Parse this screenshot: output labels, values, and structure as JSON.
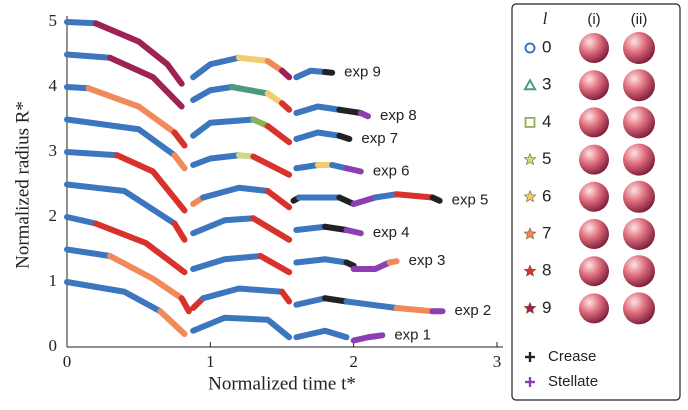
{
  "chart_data": {
    "type": "segmented-line",
    "x_label": "Normalized time t*",
    "y_label": "Normalized radius R*",
    "xlim": [
      0,
      3
    ],
    "ylim": [
      0,
      5
    ],
    "xticks": [
      0,
      1,
      2,
      3
    ],
    "yticks": [
      0,
      1,
      2,
      3,
      4,
      5
    ],
    "legend": {
      "title": "l",
      "columns": [
        "(i)",
        "(ii)"
      ],
      "entries": [
        {
          "label": "0",
          "marker": "circle",
          "color": "#3b76bf"
        },
        {
          "label": "3",
          "marker": "triangle",
          "color": "#4c9a7c"
        },
        {
          "label": "4",
          "marker": "square",
          "color": "#8fb05a"
        },
        {
          "label": "5",
          "marker": "star",
          "color": "#cfd884"
        },
        {
          "label": "6",
          "marker": "star",
          "color": "#f2cc6e"
        },
        {
          "label": "7",
          "marker": "star",
          "color": "#f1895a"
        },
        {
          "label": "8",
          "marker": "star",
          "color": "#d8322c"
        },
        {
          "label": "9",
          "marker": "star",
          "color": "#9c2353"
        },
        {
          "label": "Crease",
          "marker": "plus",
          "color": "#222222"
        },
        {
          "label": "Stellate",
          "marker": "plus",
          "color": "#8b3fb3"
        }
      ]
    },
    "series": [
      {
        "name": "exp 1",
        "segments": [
          {
            "mode": "0",
            "x": [
              0,
              0.4,
              0.65
            ],
            "values": [
              1.0,
              0.85,
              0.55
            ]
          },
          {
            "mode": "7",
            "x": [
              0.65,
              0.82
            ],
            "values": [
              0.55,
              0.2
            ]
          },
          {
            "mode": "0",
            "x": [
              0.88,
              1.1,
              1.4,
              1.55
            ],
            "values": [
              0.25,
              0.45,
              0.42,
              0.15
            ]
          },
          {
            "mode": "0",
            "x": [
              1.6,
              1.8,
              1.95
            ],
            "values": [
              0.15,
              0.25,
              0.15
            ]
          },
          {
            "mode": "Stellate",
            "x": [
              2.0,
              2.1,
              2.2
            ],
            "values": [
              0.1,
              0.15,
              0.18
            ]
          }
        ]
      },
      {
        "name": "exp 2",
        "segments": [
          {
            "mode": "0",
            "x": [
              0,
              0.3
            ],
            "values": [
              1.5,
              1.4
            ]
          },
          {
            "mode": "7",
            "x": [
              0.3,
              0.6,
              0.8
            ],
            "values": [
              1.4,
              1.05,
              0.75
            ]
          },
          {
            "mode": "8",
            "x": [
              0.8,
              0.85
            ],
            "values": [
              0.75,
              0.55
            ]
          },
          {
            "mode": "8",
            "x": [
              0.88,
              0.95
            ],
            "values": [
              0.6,
              0.75
            ]
          },
          {
            "mode": "0",
            "x": [
              0.95,
              1.2,
              1.5
            ],
            "values": [
              0.75,
              0.9,
              0.85
            ]
          },
          {
            "mode": "8",
            "x": [
              1.5,
              1.55
            ],
            "values": [
              0.85,
              0.7
            ]
          },
          {
            "mode": "0",
            "x": [
              1.6,
              1.8
            ],
            "values": [
              0.65,
              0.75
            ]
          },
          {
            "mode": "Crease",
            "x": [
              1.8,
              1.95
            ],
            "values": [
              0.75,
              0.7
            ]
          },
          {
            "mode": "0",
            "x": [
              1.95,
              2.3
            ],
            "values": [
              0.7,
              0.6
            ]
          },
          {
            "mode": "7",
            "x": [
              2.3,
              2.55
            ],
            "values": [
              0.6,
              0.55
            ]
          },
          {
            "mode": "Stellate",
            "x": [
              2.55,
              2.62
            ],
            "values": [
              0.55,
              0.55
            ]
          }
        ]
      },
      {
        "name": "exp 3",
        "segments": [
          {
            "mode": "0",
            "x": [
              0,
              0.2
            ],
            "values": [
              2.0,
              1.9
            ]
          },
          {
            "mode": "8",
            "x": [
              0.2,
              0.55,
              0.82
            ],
            "values": [
              1.9,
              1.6,
              1.15
            ]
          },
          {
            "mode": "0",
            "x": [
              0.88,
              1.1,
              1.35
            ],
            "values": [
              1.2,
              1.35,
              1.4
            ]
          },
          {
            "mode": "8",
            "x": [
              1.35,
              1.55
            ],
            "values": [
              1.4,
              1.15
            ]
          },
          {
            "mode": "0",
            "x": [
              1.6,
              1.8,
              1.95
            ],
            "values": [
              1.3,
              1.35,
              1.3
            ]
          },
          {
            "mode": "Crease",
            "x": [
              1.95,
              2.0
            ],
            "values": [
              1.3,
              1.25
            ]
          },
          {
            "mode": "Stellate",
            "x": [
              2.0,
              2.15,
              2.25
            ],
            "values": [
              1.2,
              1.2,
              1.3
            ]
          },
          {
            "mode": "7",
            "x": [
              2.25,
              2.3
            ],
            "values": [
              1.3,
              1.32
            ]
          }
        ]
      },
      {
        "name": "exp 4",
        "segments": [
          {
            "mode": "0",
            "x": [
              0,
              0.4,
              0.75
            ],
            "values": [
              2.5,
              2.4,
              1.9
            ]
          },
          {
            "mode": "8",
            "x": [
              0.75,
              0.82
            ],
            "values": [
              1.9,
              1.65
            ]
          },
          {
            "mode": "0",
            "x": [
              0.88,
              1.1,
              1.3
            ],
            "values": [
              1.75,
              1.95,
              1.98
            ]
          },
          {
            "mode": "8",
            "x": [
              1.3,
              1.55
            ],
            "values": [
              1.98,
              1.65
            ]
          },
          {
            "mode": "0",
            "x": [
              1.6,
              1.8
            ],
            "values": [
              1.8,
              1.85
            ]
          },
          {
            "mode": "Crease",
            "x": [
              1.8,
              1.95
            ],
            "values": [
              1.85,
              1.8
            ]
          },
          {
            "mode": "Stellate",
            "x": [
              1.95,
              2.05
            ],
            "values": [
              1.8,
              1.75
            ]
          }
        ]
      },
      {
        "name": "exp 5",
        "segments": [
          {
            "mode": "0",
            "x": [
              0,
              0.35
            ],
            "values": [
              3.0,
              2.95
            ]
          },
          {
            "mode": "8",
            "x": [
              0.35,
              0.6,
              0.82
            ],
            "values": [
              2.95,
              2.7,
              2.1
            ]
          },
          {
            "mode": "7",
            "x": [
              0.88,
              0.95
            ],
            "values": [
              2.2,
              2.3
            ]
          },
          {
            "mode": "0",
            "x": [
              0.95,
              1.2,
              1.4
            ],
            "values": [
              2.3,
              2.45,
              2.4
            ]
          },
          {
            "mode": "8",
            "x": [
              1.4,
              1.55
            ],
            "values": [
              2.4,
              2.15
            ]
          },
          {
            "mode": "Crease",
            "x": [
              1.58,
              1.62
            ],
            "values": [
              2.25,
              2.3
            ]
          },
          {
            "mode": "0",
            "x": [
              1.62,
              1.9
            ],
            "values": [
              2.3,
              2.3
            ]
          },
          {
            "mode": "Crease",
            "x": [
              1.9,
              2.0
            ],
            "values": [
              2.3,
              2.2
            ]
          },
          {
            "mode": "Stellate",
            "x": [
              2.0,
              2.15
            ],
            "values": [
              2.2,
              2.3
            ]
          },
          {
            "mode": "0",
            "x": [
              2.15,
              2.3
            ],
            "values": [
              2.3,
              2.35
            ]
          },
          {
            "mode": "8",
            "x": [
              2.3,
              2.55
            ],
            "values": [
              2.35,
              2.3
            ]
          },
          {
            "mode": "Crease",
            "x": [
              2.55,
              2.6
            ],
            "values": [
              2.3,
              2.25
            ]
          }
        ]
      },
      {
        "name": "exp 6",
        "segments": [
          {
            "mode": "0",
            "x": [
              0,
              0.5,
              0.75
            ],
            "values": [
              3.5,
              3.35,
              2.95
            ]
          },
          {
            "mode": "7",
            "x": [
              0.75,
              0.82
            ],
            "values": [
              2.95,
              2.75
            ]
          },
          {
            "mode": "0",
            "x": [
              0.88,
              1.0,
              1.2
            ],
            "values": [
              2.8,
              2.9,
              2.95
            ]
          },
          {
            "mode": "5",
            "x": [
              1.2,
              1.3
            ],
            "values": [
              2.95,
              2.93
            ]
          },
          {
            "mode": "8",
            "x": [
              1.3,
              1.55
            ],
            "values": [
              2.93,
              2.65
            ]
          },
          {
            "mode": "0",
            "x": [
              1.6,
              1.75
            ],
            "values": [
              2.75,
              2.8
            ]
          },
          {
            "mode": "6",
            "x": [
              1.75,
              1.85
            ],
            "values": [
              2.8,
              2.8
            ]
          },
          {
            "mode": "0",
            "x": [
              1.85,
              1.95
            ],
            "values": [
              2.8,
              2.75
            ]
          },
          {
            "mode": "Stellate",
            "x": [
              1.95,
              2.05
            ],
            "values": [
              2.75,
              2.7
            ]
          }
        ]
      },
      {
        "name": "exp 7",
        "segments": [
          {
            "mode": "0",
            "x": [
              0,
              0.15
            ],
            "values": [
              4.0,
              3.98
            ]
          },
          {
            "mode": "7",
            "x": [
              0.15,
              0.5,
              0.75
            ],
            "values": [
              3.98,
              3.7,
              3.3
            ]
          },
          {
            "mode": "8",
            "x": [
              0.75,
              0.82
            ],
            "values": [
              3.3,
              3.1
            ]
          },
          {
            "mode": "0",
            "x": [
              0.88,
              1.0,
              1.3
            ],
            "values": [
              3.25,
              3.45,
              3.5
            ]
          },
          {
            "mode": "4",
            "x": [
              1.3,
              1.4
            ],
            "values": [
              3.5,
              3.4
            ]
          },
          {
            "mode": "8",
            "x": [
              1.4,
              1.55
            ],
            "values": [
              3.4,
              3.15
            ]
          },
          {
            "mode": "0",
            "x": [
              1.6,
              1.75,
              1.9
            ],
            "values": [
              3.2,
              3.3,
              3.25
            ]
          },
          {
            "mode": "Crease",
            "x": [
              1.9,
              1.97
            ],
            "values": [
              3.25,
              3.2
            ]
          }
        ]
      },
      {
        "name": "exp 8",
        "segments": [
          {
            "mode": "0",
            "x": [
              0,
              0.3
            ],
            "values": [
              4.5,
              4.45
            ]
          },
          {
            "mode": "9",
            "x": [
              0.3,
              0.6,
              0.8
            ],
            "values": [
              4.45,
              4.15,
              3.7
            ]
          },
          {
            "mode": "0",
            "x": [
              0.88,
              1.0,
              1.15
            ],
            "values": [
              3.8,
              3.95,
              4.0
            ]
          },
          {
            "mode": "3",
            "x": [
              1.15,
              1.4
            ],
            "values": [
              4.0,
              3.9
            ]
          },
          {
            "mode": "6",
            "x": [
              1.4,
              1.5
            ],
            "values": [
              3.9,
              3.75
            ]
          },
          {
            "mode": "8",
            "x": [
              1.5,
              1.55
            ],
            "values": [
              3.75,
              3.65
            ]
          },
          {
            "mode": "0",
            "x": [
              1.6,
              1.75,
              1.9
            ],
            "values": [
              3.6,
              3.7,
              3.65
            ]
          },
          {
            "mode": "Crease",
            "x": [
              1.9,
              2.05
            ],
            "values": [
              3.65,
              3.6
            ]
          },
          {
            "mode": "Stellate",
            "x": [
              2.05,
              2.1
            ],
            "values": [
              3.6,
              3.55
            ]
          }
        ]
      },
      {
        "name": "exp 9",
        "segments": [
          {
            "mode": "0",
            "x": [
              0,
              0.2
            ],
            "values": [
              5.0,
              4.98
            ]
          },
          {
            "mode": "9",
            "x": [
              0.2,
              0.5,
              0.7,
              0.8
            ],
            "values": [
              4.98,
              4.7,
              4.35,
              4.05
            ]
          },
          {
            "mode": "0",
            "x": [
              0.88,
              1.0,
              1.2
            ],
            "values": [
              4.15,
              4.35,
              4.45
            ]
          },
          {
            "mode": "6",
            "x": [
              1.2,
              1.4
            ],
            "values": [
              4.45,
              4.4
            ]
          },
          {
            "mode": "7",
            "x": [
              1.4,
              1.5
            ],
            "values": [
              4.4,
              4.25
            ]
          },
          {
            "mode": "9",
            "x": [
              1.5,
              1.55
            ],
            "values": [
              4.25,
              4.15
            ]
          },
          {
            "mode": "0",
            "x": [
              1.6,
              1.7,
              1.8
            ],
            "values": [
              4.15,
              4.25,
              4.23
            ]
          },
          {
            "mode": "Crease",
            "x": [
              1.8,
              1.85
            ],
            "values": [
              4.23,
              4.22
            ]
          }
        ]
      }
    ]
  }
}
